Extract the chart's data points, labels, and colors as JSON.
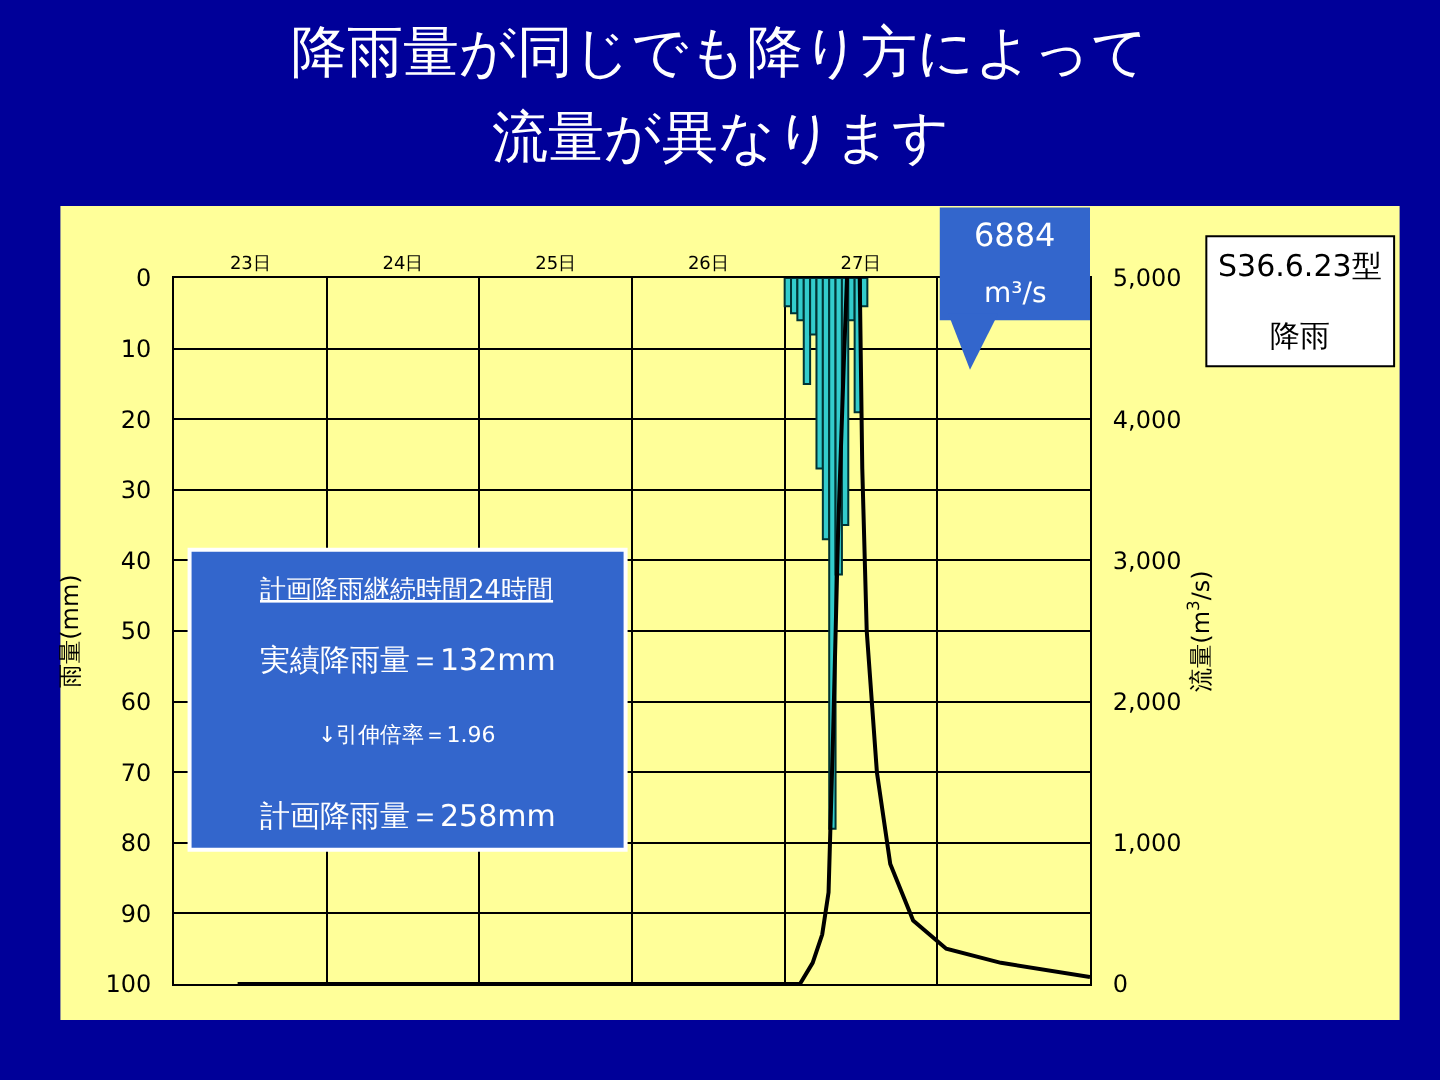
{
  "chart_data": {
    "type": "bar",
    "title": "降雨量が同じでも降り方によって",
    "subtitle": "流量が異なります",
    "ylabel": "雨量(mm)",
    "y2label": "流量(m$^{3}$/s)",
    "xlim": [
      "--06-23T00:00",
      "--06-29T00:00"
    ],
    "xticks": [
      {
        "value": "--06-23T12:00",
        "label": "23日"
      },
      {
        "value": "--06-24T00:00",
        "label": null
      },
      {
        "value": "--06-24T12:00",
        "label": "24日"
      },
      {
        "value": "--06-25T00:00",
        "label": null
      },
      {
        "value": "--06-25T12:00",
        "label": "25日"
      },
      {
        "value": "--06-26T00:00",
        "label": null
      },
      {
        "value": "--06-26T12:00",
        "label": "26日"
      },
      {
        "value": "--06-27T00:00",
        "label": null
      },
      {
        "value": "--06-27T12:00",
        "label": "27日"
      },
      {
        "value": "--06-28T00:00",
        "label": null
      }
    ],
    "ylim": [
      100,
      0
    ],
    "yticks": [
      0,
      10,
      20,
      30,
      40,
      50,
      60,
      70,
      80,
      90,
      100
    ],
    "y2lim": [
      0,
      5000
    ],
    "y2ticks": [
      0,
      {
        "value": 1000,
        "label": "1,000"
      },
      {
        "value": 2000,
        "label": "2,000"
      },
      {
        "value": 3000,
        "label": "3,000"
      },
      {
        "value": 4000,
        "label": "4,000"
      },
      {
        "value": 5000,
        "label": "5,000"
      }
    ],
    "grid": true,
    "marker": "none",
    "series": [
      {
        "color": "#33cccc",
        "x": [
          "--06-27T00:30",
          "--06-27T01:30",
          "--06-27T02:30",
          "--06-27T03:30",
          "--06-27T04:30",
          "--06-27T05:30",
          "--06-27T06:30",
          "--06-27T07:30",
          "--06-27T08:30",
          "--06-27T09:30",
          "--06-27T10:30",
          "--06-27T11:30",
          "--06-27T12:30"
        ],
        "values": [
          4,
          5,
          6,
          15,
          8,
          27,
          37,
          78,
          42,
          35,
          6,
          19,
          4
        ]
      },
      {
        "type": "line",
        "axis": "y2",
        "color": "#000000",
        "x": [
          "--06-23T10:00",
          "--06-27T02:24",
          "--06-27T04:24",
          "--06-27T05:54",
          "--06-27T06:54",
          "--06-27T07:36",
          "--06-27T08:24",
          "--06-27T09:18",
          "--06-27T09:48",
          "--06-27T11:00",
          "--06-27T11:48",
          "--06-27T12:12",
          "--06-27T12:54",
          "--06-27T14:30",
          "--06-27T16:36",
          "--06-27T20:12",
          "--06-28T01:24",
          "--06-28T10:00",
          "--06-29T00:00"
        ],
        "values": [
          0,
          0,
          150,
          350,
          650,
          1750,
          3200,
          4400,
          5000,
          null,
          5000,
          3650,
          2500,
          1500,
          850,
          450,
          250,
          150,
          50
        ]
      }
    ],
    "annotations": [
      "6884",
      "m³/s",
      "S36.6.23型",
      "降雨",
      "計画降雨継続時間24時間",
      "実績降雨量＝132mm",
      "↓引伸倍率＝1.96",
      "計画降雨量＝258mm"
    ]
  }
}
